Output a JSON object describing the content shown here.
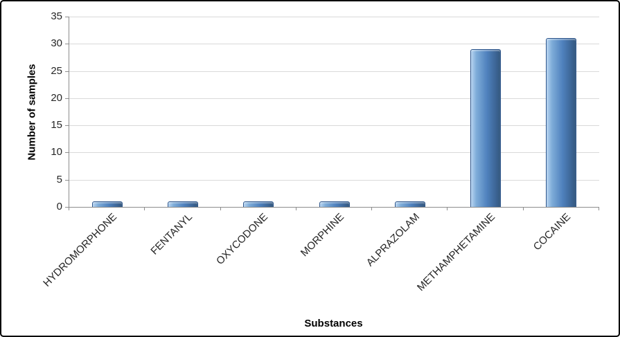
{
  "chart_data": {
    "type": "bar",
    "categories": [
      "HYDROMORPHONE",
      "FENTANYL",
      "OXYCODONE",
      "MORPHINE",
      "ALPRAZOLAM",
      "METHAMPHETAMINE",
      "COCAINE"
    ],
    "values": [
      1,
      1,
      1,
      1,
      1,
      29,
      31
    ],
    "title": "",
    "xlabel": "Substances",
    "ylabel": "Number of samples",
    "ylim": [
      0,
      35
    ],
    "yticks": [
      0,
      5,
      10,
      15,
      20,
      25,
      30,
      35
    ],
    "grid": true,
    "legend": "none",
    "bar_color": "#4F81BD",
    "gridline_color": "#D9D9D9",
    "axis_color": "#8C8C8C",
    "text_color": "#262626"
  }
}
